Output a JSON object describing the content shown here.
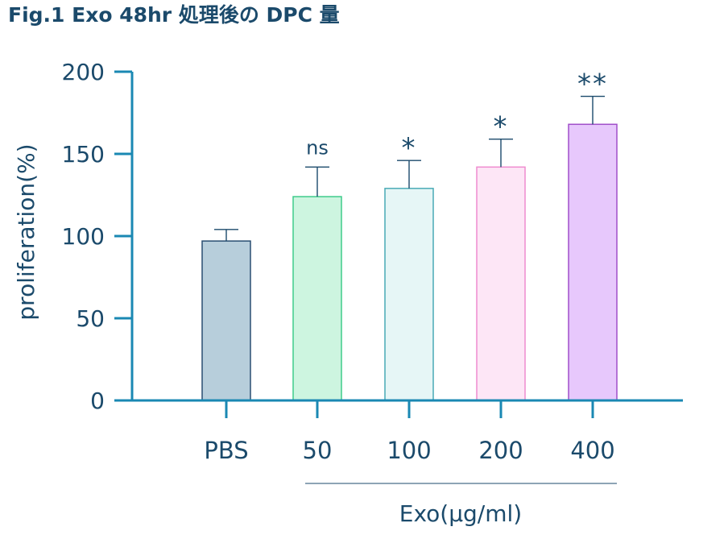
{
  "figure": {
    "title": "Fig.1 Exo 48hr 処理後の DPC 量"
  },
  "colors": {
    "axis": "#1a88b3",
    "text": "#1b4a6b",
    "errorbar": "#1b4a6b",
    "group_line": "#1b4a6b"
  },
  "chart_data": {
    "type": "bar",
    "title": "Fig.1 Exo 48hr 処理後の DPC 量",
    "ylabel": "proliferation(%)",
    "xlabel": "Exo(μg/ml)",
    "ylim": [
      0,
      200
    ],
    "yticks": [
      "0",
      "50",
      "100",
      "150",
      "200"
    ],
    "yticks_values": [
      0,
      50,
      100,
      150,
      200
    ],
    "grid": false,
    "legend": "none",
    "categories": [
      "PBS",
      "50",
      "100",
      "200",
      "400"
    ],
    "values": [
      97,
      124,
      129,
      142,
      168
    ],
    "errors": [
      7,
      18,
      17,
      17,
      17
    ],
    "significance": [
      "",
      "ns",
      "*",
      "*",
      "**"
    ],
    "bar_fill": [
      "#b7cedb",
      "#cdf5e0",
      "#e6f6f6",
      "#fde6f6",
      "#e7c8fc"
    ],
    "bar_stroke": [
      "#2a4f72",
      "#3fcc8a",
      "#49aab5",
      "#ef8ccf",
      "#a04fca"
    ],
    "group_bracket": {
      "label": "Exo(μg/ml)",
      "spans": [
        "50",
        "400"
      ]
    }
  }
}
